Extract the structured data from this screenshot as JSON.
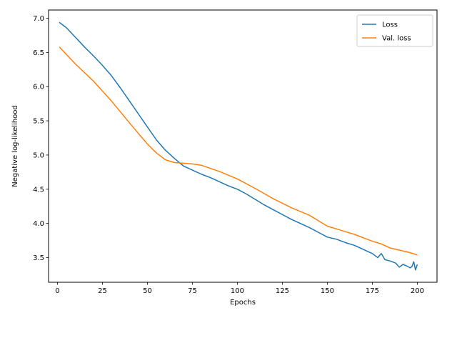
{
  "chart_data": {
    "type": "line",
    "title": "",
    "xlabel": "Epochs",
    "ylabel": "Negative log-likelihood",
    "xlim": [
      -4.95,
      210.95
    ],
    "ylim": [
      3.14,
      7.12
    ],
    "xticks": [
      0,
      25,
      50,
      75,
      100,
      125,
      150,
      175,
      200
    ],
    "yticks": [
      3.5,
      4.0,
      4.5,
      5.0,
      5.5,
      6.0,
      6.5,
      7.0
    ],
    "xtick_labels": [
      "0",
      "25",
      "50",
      "75",
      "100",
      "125",
      "150",
      "175",
      "200"
    ],
    "ytick_labels": [
      "3.5",
      "4.0",
      "4.5",
      "5.0",
      "5.5",
      "6.0",
      "6.5",
      "7.0"
    ],
    "grid": false,
    "legend_position": "top-right",
    "series": [
      {
        "name": "Loss",
        "color": "#1f77b4",
        "x": [
          1,
          5,
          10,
          15,
          20,
          25,
          30,
          35,
          40,
          45,
          50,
          55,
          60,
          65,
          70,
          75,
          80,
          85,
          90,
          95,
          100,
          105,
          110,
          115,
          120,
          125,
          130,
          135,
          140,
          145,
          150,
          155,
          160,
          165,
          170,
          175,
          178,
          180,
          182,
          185,
          188,
          190,
          192,
          194,
          196,
          197,
          198,
          199,
          200
        ],
        "y": [
          6.94,
          6.86,
          6.72,
          6.58,
          6.45,
          6.31,
          6.16,
          5.98,
          5.79,
          5.6,
          5.41,
          5.22,
          5.07,
          4.95,
          4.84,
          4.78,
          4.72,
          4.67,
          4.61,
          4.55,
          4.5,
          4.43,
          4.35,
          4.27,
          4.2,
          4.13,
          4.06,
          4.0,
          3.94,
          3.87,
          3.8,
          3.77,
          3.72,
          3.68,
          3.62,
          3.56,
          3.5,
          3.56,
          3.47,
          3.45,
          3.42,
          3.36,
          3.4,
          3.38,
          3.35,
          3.37,
          3.44,
          3.32,
          3.4
        ]
      },
      {
        "name": "Val. loss",
        "color": "#ff7f0e",
        "x": [
          1,
          10,
          20,
          30,
          40,
          50,
          55,
          60,
          65,
          70,
          75,
          80,
          90,
          100,
          110,
          120,
          130,
          140,
          145,
          150,
          155,
          160,
          165,
          170,
          175,
          180,
          185,
          190,
          195,
          200
        ],
        "y": [
          6.58,
          6.33,
          6.08,
          5.79,
          5.47,
          5.16,
          5.03,
          4.93,
          4.89,
          4.88,
          4.87,
          4.85,
          4.76,
          4.65,
          4.51,
          4.36,
          4.23,
          4.12,
          4.04,
          3.96,
          3.92,
          3.88,
          3.84,
          3.79,
          3.74,
          3.7,
          3.64,
          3.61,
          3.58,
          3.54
        ]
      }
    ]
  }
}
